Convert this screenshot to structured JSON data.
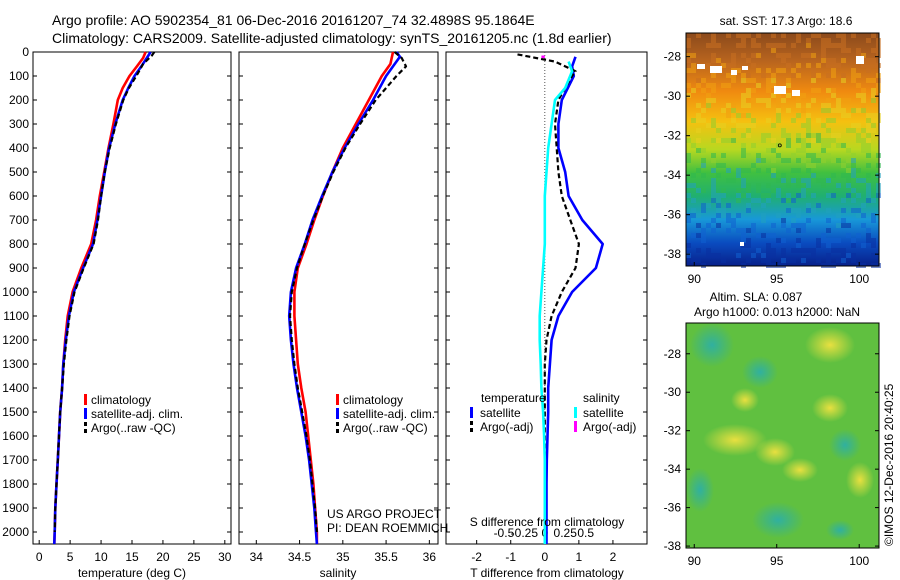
{
  "header": {
    "line1": "Argo profile: AO 5902354_81 06-Dec-2016 20161207_74 32.4898S 95.1864E",
    "line2": "Climatology: CARS2009. Satellite-adjusted climatology: synTS_20161205.nc (1.8d earlier)"
  },
  "colors": {
    "climatology": "#ff0000",
    "satellite": "#0000ff",
    "argo": "#000000",
    "salinity_satellite": "#00ffff",
    "salinity_argo": "#ff00ff",
    "zero_line": "#555555"
  },
  "annotations": {
    "project": "US ARGO PROJECT",
    "pi": "PI: DEAN ROEMMICH",
    "imos": "©IMOS 12-Dec-2016 20:40:25"
  },
  "chart_data": [
    {
      "type": "line",
      "id": "temperature",
      "xlabel": "temperature (deg C)",
      "ylabel": "",
      "xlim": [
        -1,
        31
      ],
      "ylim": [
        2050,
        0
      ],
      "xticks": [
        "0",
        "5",
        "10",
        "15",
        "20",
        "25",
        "30"
      ],
      "yticks": [
        "0",
        "100",
        "200",
        "300",
        "400",
        "500",
        "600",
        "700",
        "800",
        "900",
        "1000",
        "1100",
        "1200",
        "1300",
        "1400",
        "1500",
        "1600",
        "1700",
        "1800",
        "1900",
        "2000"
      ],
      "legend": [
        {
          "label": "climatology",
          "color": "#ff0000"
        },
        {
          "label": "satellite-adj. clim.",
          "color": "#0000ff"
        },
        {
          "label": "Argo(..raw -QC)",
          "color": "#000000"
        }
      ],
      "series": [
        {
          "name": "climatology",
          "color": "#ff0000",
          "dash": "",
          "points": [
            [
              17.2,
              0
            ],
            [
              16.8,
              25
            ],
            [
              15.8,
              60
            ],
            [
              14.6,
              100
            ],
            [
              13.5,
              150
            ],
            [
              12.7,
              200
            ],
            [
              12.0,
              300
            ],
            [
              11.2,
              400
            ],
            [
              10.5,
              500
            ],
            [
              9.8,
              600
            ],
            [
              9.2,
              700
            ],
            [
              8.4,
              800
            ],
            [
              6.8,
              900
            ],
            [
              5.4,
              1000
            ],
            [
              4.6,
              1100
            ],
            [
              4.2,
              1200
            ],
            [
              3.9,
              1300
            ],
            [
              3.7,
              1400
            ],
            [
              3.4,
              1500
            ],
            [
              3.2,
              1600
            ],
            [
              3.0,
              1700
            ],
            [
              2.8,
              1800
            ],
            [
              2.6,
              1900
            ],
            [
              2.5,
              2000
            ],
            [
              2.45,
              2050
            ]
          ]
        },
        {
          "name": "satellite-adj. clim.",
          "color": "#0000ff",
          "dash": "",
          "points": [
            [
              18.0,
              0
            ],
            [
              17.4,
              25
            ],
            [
              16.5,
              60
            ],
            [
              15.4,
              100
            ],
            [
              14.4,
              150
            ],
            [
              13.5,
              200
            ],
            [
              12.3,
              300
            ],
            [
              11.3,
              400
            ],
            [
              10.6,
              500
            ],
            [
              10.0,
              600
            ],
            [
              9.4,
              700
            ],
            [
              8.7,
              800
            ],
            [
              7.1,
              900
            ],
            [
              5.6,
              1000
            ],
            [
              4.8,
              1100
            ],
            [
              4.3,
              1200
            ],
            [
              3.9,
              1300
            ],
            [
              3.7,
              1400
            ],
            [
              3.4,
              1500
            ],
            [
              3.2,
              1600
            ],
            [
              3.0,
              1700
            ],
            [
              2.8,
              1800
            ],
            [
              2.6,
              1900
            ],
            [
              2.5,
              2000
            ],
            [
              2.45,
              2050
            ]
          ]
        },
        {
          "name": "Argo(..raw -QC)",
          "color": "#000000",
          "dash": "5,3",
          "points": [
            [
              18.6,
              0
            ],
            [
              18.2,
              15
            ],
            [
              16.8,
              50
            ],
            [
              15.7,
              100
            ],
            [
              14.5,
              150
            ],
            [
              13.6,
              200
            ],
            [
              12.4,
              300
            ],
            [
              11.4,
              400
            ],
            [
              10.6,
              500
            ],
            [
              10.0,
              600
            ],
            [
              9.5,
              700
            ],
            [
              8.8,
              800
            ],
            [
              7.2,
              900
            ],
            [
              5.7,
              1000
            ],
            [
              4.9,
              1100
            ],
            [
              4.4,
              1200
            ],
            [
              4.0,
              1300
            ],
            [
              3.7,
              1400
            ],
            [
              3.4,
              1500
            ],
            [
              3.2,
              1600
            ],
            [
              3.0,
              1700
            ],
            [
              2.8,
              1800
            ],
            [
              2.6,
              1900
            ],
            [
              2.5,
              2000
            ]
          ]
        }
      ]
    },
    {
      "type": "line",
      "id": "salinity",
      "xlabel": "salinity",
      "ylabel": "",
      "xlim": [
        33.8,
        36.1
      ],
      "ylim": [
        2050,
        0
      ],
      "xticks": [
        "34",
        "34.5",
        "35",
        "35.5",
        "36"
      ],
      "legend": [
        {
          "label": "climatology",
          "color": "#ff0000"
        },
        {
          "label": "satellite-adj. clim.",
          "color": "#0000ff"
        },
        {
          "label": "Argo(..raw -QC)",
          "color": "#000000"
        }
      ],
      "series": [
        {
          "name": "climatology",
          "color": "#ff0000",
          "dash": "",
          "points": [
            [
              35.58,
              0
            ],
            [
              35.55,
              50
            ],
            [
              35.45,
              100
            ],
            [
              35.3,
              200
            ],
            [
              35.15,
              300
            ],
            [
              35.0,
              400
            ],
            [
              34.88,
              500
            ],
            [
              34.77,
              600
            ],
            [
              34.67,
              700
            ],
            [
              34.58,
              800
            ],
            [
              34.48,
              900
            ],
            [
              34.44,
              1000
            ],
            [
              34.44,
              1100
            ],
            [
              34.46,
              1200
            ],
            [
              34.48,
              1300
            ],
            [
              34.52,
              1400
            ],
            [
              34.57,
              1500
            ],
            [
              34.6,
              1600
            ],
            [
              34.63,
              1700
            ],
            [
              34.66,
              1800
            ],
            [
              34.68,
              1900
            ],
            [
              34.7,
              2000
            ],
            [
              34.7,
              2050
            ]
          ]
        },
        {
          "name": "satellite-adj. clim.",
          "color": "#0000ff",
          "dash": "",
          "points": [
            [
              35.62,
              0
            ],
            [
              35.66,
              20
            ],
            [
              35.6,
              50
            ],
            [
              35.5,
              100
            ],
            [
              35.35,
              200
            ],
            [
              35.18,
              300
            ],
            [
              35.02,
              400
            ],
            [
              34.88,
              500
            ],
            [
              34.76,
              600
            ],
            [
              34.65,
              700
            ],
            [
              34.56,
              800
            ],
            [
              34.46,
              900
            ],
            [
              34.4,
              1000
            ],
            [
              34.38,
              1100
            ],
            [
              34.4,
              1200
            ],
            [
              34.43,
              1300
            ],
            [
              34.47,
              1400
            ],
            [
              34.52,
              1500
            ],
            [
              34.57,
              1600
            ],
            [
              34.61,
              1700
            ],
            [
              34.64,
              1800
            ],
            [
              34.67,
              1900
            ],
            [
              34.69,
              2000
            ],
            [
              34.7,
              2050
            ]
          ]
        },
        {
          "name": "Argo(..raw -QC)",
          "color": "#000000",
          "dash": "5,3",
          "points": [
            [
              35.6,
              0
            ],
            [
              35.68,
              25
            ],
            [
              35.73,
              60
            ],
            [
              35.62,
              100
            ],
            [
              35.38,
              200
            ],
            [
              35.2,
              300
            ],
            [
              35.03,
              400
            ],
            [
              34.89,
              500
            ],
            [
              34.77,
              600
            ],
            [
              34.66,
              700
            ],
            [
              34.56,
              800
            ],
            [
              34.47,
              900
            ],
            [
              34.41,
              1000
            ],
            [
              34.39,
              1100
            ],
            [
              34.41,
              1200
            ],
            [
              34.44,
              1300
            ],
            [
              34.48,
              1400
            ],
            [
              34.53,
              1500
            ],
            [
              34.58,
              1600
            ],
            [
              34.62,
              1700
            ],
            [
              34.65,
              1800
            ],
            [
              34.68,
              1900
            ],
            [
              34.7,
              2000
            ]
          ]
        }
      ]
    },
    {
      "type": "line",
      "id": "difference",
      "xlabel": "T difference from climatology",
      "xlabel_top": "S difference from climatology",
      "xlim": [
        -2.9,
        3.0
      ],
      "ylim": [
        2050,
        0
      ],
      "xticks": [
        "-2",
        "-1",
        "0",
        "1",
        "2"
      ],
      "xticks_s": [
        "-0.5",
        "-0.25",
        "0",
        "0.25",
        "0.5"
      ],
      "legend_temperature_title": "temperature",
      "legend_salinity_title": "salinity",
      "legend": [
        {
          "label": "satellite",
          "color": "#0000ff"
        },
        {
          "label": "Argo(-adj)",
          "color": "#000000"
        },
        {
          "label": "satellite",
          "color": "#00ffff"
        },
        {
          "label": "Argo(-adj)",
          "color": "#ff00ff"
        }
      ],
      "series": [
        {
          "name": "temperature satellite",
          "color": "#0000ff",
          "dash": "",
          "points": [
            [
              0.9,
              20
            ],
            [
              0.8,
              60
            ],
            [
              0.85,
              100
            ],
            [
              0.5,
              200
            ],
            [
              0.4,
              300
            ],
            [
              0.4,
              400
            ],
            [
              0.6,
              500
            ],
            [
              0.7,
              600
            ],
            [
              1.1,
              700
            ],
            [
              1.7,
              800
            ],
            [
              1.5,
              900
            ],
            [
              0.8,
              1000
            ],
            [
              0.4,
              1100
            ],
            [
              0.2,
              1200
            ],
            [
              0.15,
              1300
            ],
            [
              0.1,
              1400
            ],
            [
              0.1,
              1500
            ],
            [
              0.08,
              1600
            ],
            [
              0.06,
              1700
            ],
            [
              0.05,
              1800
            ],
            [
              0.05,
              1900
            ],
            [
              0.05,
              2000
            ],
            [
              0.05,
              2050
            ]
          ]
        },
        {
          "name": "temperature Argo(-adj)",
          "color": "#000000",
          "dash": "5,3",
          "points": [
            [
              -0.8,
              10
            ],
            [
              0.3,
              40
            ],
            [
              0.9,
              80
            ],
            [
              0.8,
              100
            ],
            [
              0.4,
              200
            ],
            [
              0.3,
              300
            ],
            [
              0.35,
              400
            ],
            [
              0.4,
              500
            ],
            [
              0.5,
              600
            ],
            [
              0.75,
              700
            ],
            [
              1.0,
              800
            ],
            [
              0.9,
              900
            ],
            [
              0.5,
              1000
            ],
            [
              0.2,
              1100
            ],
            [
              0.05,
              1200
            ],
            [
              0.0,
              1300
            ],
            [
              0.0,
              1400
            ],
            [
              0.0,
              1500
            ],
            [
              0.0,
              1600
            ],
            [
              0.0,
              1700
            ],
            [
              0.0,
              1800
            ],
            [
              0.0,
              1900
            ],
            [
              0.0,
              2000
            ]
          ]
        },
        {
          "name": "salinity satellite",
          "color": "#00ffff",
          "dash": "",
          "points": [
            [
              0.7,
              40
            ],
            [
              0.8,
              80
            ],
            [
              0.6,
              150
            ],
            [
              0.3,
              200
            ],
            [
              0.2,
              300
            ],
            [
              0.1,
              400
            ],
            [
              0.05,
              500
            ],
            [
              0.0,
              600
            ],
            [
              0.0,
              700
            ],
            [
              0.0,
              800
            ],
            [
              -0.05,
              900
            ],
            [
              -0.1,
              1000
            ],
            [
              -0.15,
              1100
            ],
            [
              -0.15,
              1200
            ],
            [
              -0.12,
              1300
            ],
            [
              -0.1,
              1400
            ],
            [
              -0.05,
              1500
            ],
            [
              -0.02,
              1600
            ],
            [
              0.0,
              1700
            ],
            [
              0.0,
              1800
            ],
            [
              0.0,
              1900
            ],
            [
              0.0,
              2000
            ],
            [
              0.0,
              2050
            ]
          ]
        },
        {
          "name": "salinity Argo(-adj)",
          "color": "#ff00ff",
          "dash": "",
          "points": [
            [
              -0.1,
              20
            ],
            [
              0.0,
              20
            ]
          ]
        }
      ]
    },
    {
      "type": "heatmap",
      "id": "sst-map",
      "title": "sat. SST: 17.3 Argo: 18.6",
      "xlim": [
        89.5,
        101.2
      ],
      "ylim": [
        -38.6,
        -26.8
      ],
      "xticks": [
        "90",
        "95",
        "100"
      ],
      "yticks": [
        "-28",
        "-30",
        "-32",
        "-34",
        "-36",
        "-38"
      ],
      "profile_location": [
        95.1864,
        -32.4898
      ]
    },
    {
      "type": "heatmap",
      "id": "sla-map",
      "title": "Altim. SLA: 0.087",
      "subtitle": "Argo h1000: 0.013 h2000: NaN",
      "xlim": [
        89.5,
        101.2
      ],
      "ylim": [
        -38.1,
        -26.4
      ],
      "xticks": [
        "90",
        "95",
        "100"
      ],
      "yticks": [
        "-28",
        "-30",
        "-32",
        "-34",
        "-36",
        "-38"
      ]
    }
  ]
}
